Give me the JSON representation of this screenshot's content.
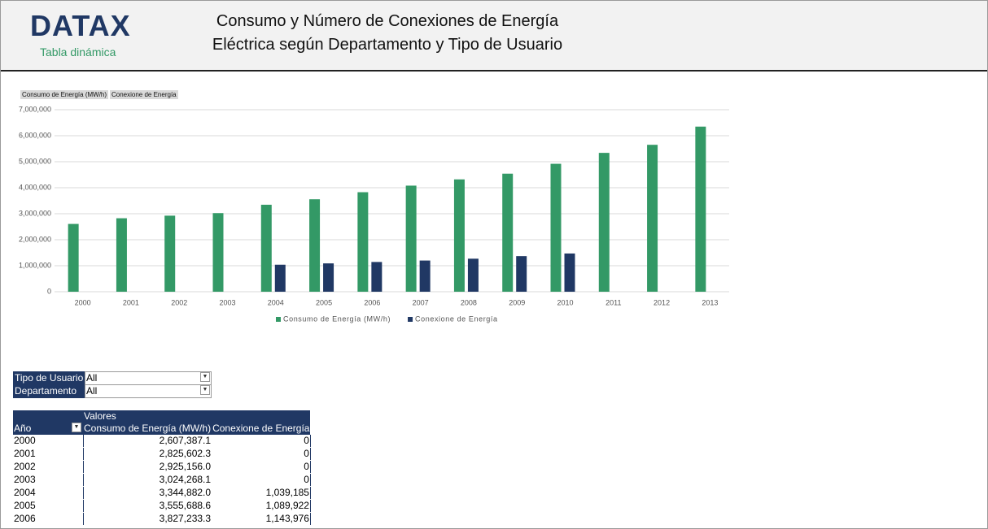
{
  "header": {
    "logo": "DATAX",
    "logo_subtitle": "Tabla dinámica",
    "title_line1": "Consumo y Número de Conexiones de Energía",
    "title_line2": "Eléctrica según Departamento y Tipo de Usuario"
  },
  "field_buttons": [
    "Consumo de Energía (MW/h)",
    "Conexione de Energía"
  ],
  "chart_data": {
    "type": "bar",
    "categories": [
      "2000",
      "2001",
      "2002",
      "2003",
      "2004",
      "2005",
      "2006",
      "2007",
      "2008",
      "2009",
      "2010",
      "2011",
      "2012",
      "2013"
    ],
    "series": [
      {
        "name": "Consumo de Energía (MW/h)",
        "color": "#339966",
        "values": [
          2607387.1,
          2825602.3,
          2925156.0,
          3024268.1,
          3344882.0,
          3555688.6,
          3827233.3,
          4080000,
          4320000,
          4540000,
          4920000,
          5340000,
          5650000,
          6350000
        ]
      },
      {
        "name": "Conexione de Energía",
        "color": "#203864",
        "values": [
          0,
          0,
          0,
          0,
          1039185,
          1089922,
          1143976,
          1200000,
          1270000,
          1370000,
          1470000,
          null,
          null,
          null
        ]
      }
    ],
    "ylim": [
      0,
      7000000
    ],
    "yticks": [
      0,
      {
        "value": 1000000,
        "label": "1,000,000"
      },
      {
        "value": 2000000,
        "label": "2,000,000"
      },
      {
        "value": 3000000,
        "label": "3,000,000"
      },
      {
        "value": 4000000,
        "label": "4,000,000"
      },
      {
        "value": 5000000,
        "label": "5,000,000"
      },
      {
        "value": 6000000,
        "label": "6,000,000"
      },
      {
        "value": 7000000,
        "label": "7,000,000"
      }
    ],
    "grid": true,
    "legend": "bottom"
  },
  "filters": [
    {
      "label": "Tipo de Usuario",
      "value": "All"
    },
    {
      "label": "Departamento",
      "value": "All"
    }
  ],
  "table": {
    "values_header": "Valores",
    "columns": [
      "Año",
      "Consumo de Energía (MW/h)",
      "Conexione de Energía"
    ],
    "rows": [
      [
        "2000",
        "2,607,387.1",
        "0"
      ],
      [
        "2001",
        "2,825,602.3",
        "0"
      ],
      [
        "2002",
        "2,925,156.0",
        "0"
      ],
      [
        "2003",
        "3,024,268.1",
        "0"
      ],
      [
        "2004",
        "3,344,882.0",
        "1,039,185"
      ],
      [
        "2005",
        "3,555,688.6",
        "1,089,922"
      ],
      [
        "2006",
        "3,827,233.3",
        "1,143,976"
      ]
    ]
  }
}
